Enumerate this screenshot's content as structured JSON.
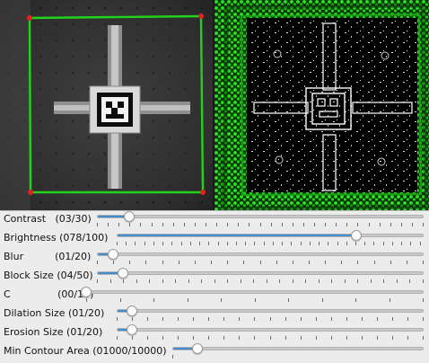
{
  "colors": {
    "accent": "#3f8fd0",
    "detection_outline": "#21d41b",
    "corner_marker": "#e52222"
  },
  "views": {
    "camera": {
      "icon": "aruco-marker-camera-view"
    },
    "threshold": {
      "icon": "aruco-marker-threshold-view"
    }
  },
  "sliders": [
    {
      "id": "contrast",
      "label": "Contrast   (03/30)",
      "value": 3,
      "max": 30
    },
    {
      "id": "brightness",
      "label": "Brightness (078/100)",
      "value": 78,
      "max": 100
    },
    {
      "id": "blur",
      "label": "Blur          (01/20)",
      "value": 1,
      "max": 20
    },
    {
      "id": "block-size",
      "label": "Block Size (04/50)",
      "value": 4,
      "max": 50
    },
    {
      "id": "c",
      "label": "C               (00/10)",
      "value": 0,
      "max": 10
    },
    {
      "id": "dilation-size",
      "label": "Dilation Size (01/20)",
      "value": 1,
      "max": 20
    },
    {
      "id": "erosion-size",
      "label": "Erosion Size (01/20)",
      "value": 1,
      "max": 20
    },
    {
      "id": "min-contour-area",
      "label": "Min Contour Area (01000/10000)",
      "value": 1000,
      "max": 10000
    }
  ]
}
